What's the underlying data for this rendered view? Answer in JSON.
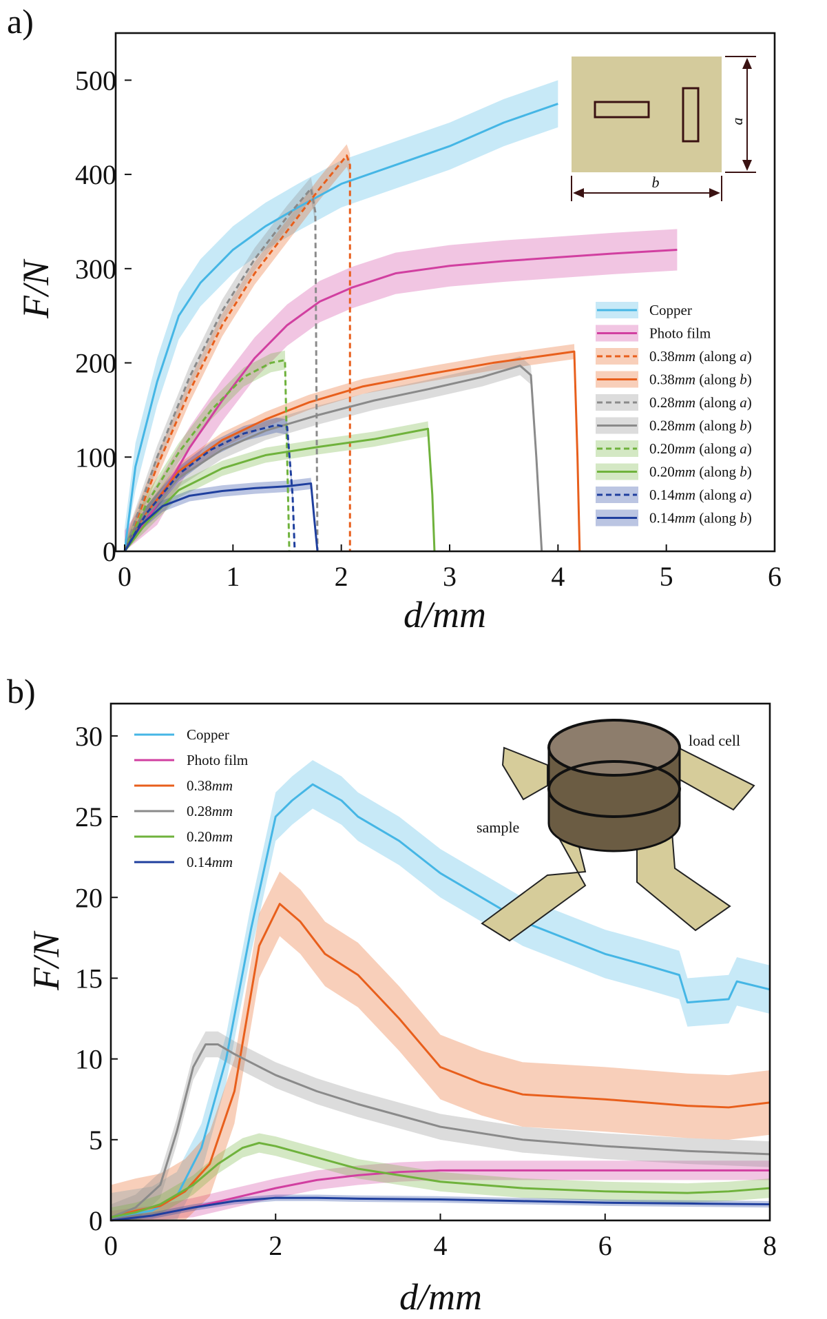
{
  "chart_data": [
    {
      "panel_label": "a)",
      "type": "line",
      "xlabel": "d/mm",
      "ylabel": "F/N",
      "xlim": [
        0,
        6
      ],
      "ylim": [
        0,
        550
      ],
      "xticks": [
        "0",
        "1",
        "2",
        "3",
        "4",
        "5",
        "6"
      ],
      "yticks": [
        "0",
        "100",
        "200",
        "300",
        "400",
        "500"
      ],
      "legend_position": "center-right",
      "inset": {
        "description": "rectangular sample with two slots",
        "dim_a": "a",
        "dim_b": "b"
      },
      "series": [
        {
          "name": "Copper",
          "color": "#45b6e5",
          "dash": "solid",
          "x": [
            0,
            0.1,
            0.3,
            0.5,
            0.7,
            1.0,
            1.3,
            1.6,
            2.0,
            2.5,
            3.0,
            3.5,
            4.0
          ],
          "y": [
            0,
            90,
            180,
            250,
            285,
            320,
            345,
            365,
            390,
            410,
            430,
            455,
            475
          ],
          "band": 25
        },
        {
          "name": "Photo film",
          "color": "#d13fa0",
          "dash": "solid",
          "x": [
            0,
            0.3,
            0.6,
            0.9,
            1.2,
            1.5,
            1.8,
            2.1,
            2.5,
            3.0,
            3.5,
            4.0,
            4.5,
            5.1
          ],
          "y": [
            0,
            50,
            110,
            160,
            205,
            240,
            265,
            280,
            295,
            303,
            308,
            312,
            316,
            320
          ],
          "band": 22
        },
        {
          "name": "0.38mm (along a)",
          "color": "#e85f1c",
          "dash": "dashed",
          "x": [
            0,
            0.3,
            0.6,
            0.9,
            1.2,
            1.5,
            1.8,
            2.05,
            2.08,
            2.08
          ],
          "y": [
            0,
            90,
            170,
            240,
            295,
            340,
            385,
            420,
            410,
            0
          ],
          "band": 12
        },
        {
          "name": "0.38mm (along b)",
          "color": "#e85f1c",
          "dash": "solid",
          "x": [
            0,
            0.2,
            0.5,
            0.9,
            1.3,
            1.7,
            2.2,
            2.8,
            3.4,
            3.9,
            4.15,
            4.18,
            4.2
          ],
          "y": [
            0,
            40,
            85,
            118,
            140,
            158,
            175,
            188,
            200,
            208,
            212,
            100,
            0
          ],
          "band": 8
        },
        {
          "name": "0.28mm (along a)",
          "color": "#8a8a8a",
          "dash": "dashed",
          "x": [
            0,
            0.3,
            0.6,
            0.9,
            1.2,
            1.5,
            1.72,
            1.76,
            1.78
          ],
          "y": [
            0,
            100,
            185,
            255,
            310,
            355,
            385,
            360,
            0
          ],
          "band": 12
        },
        {
          "name": "0.28mm (along b)",
          "color": "#8a8a8a",
          "dash": "solid",
          "x": [
            0,
            0.2,
            0.5,
            0.9,
            1.3,
            1.8,
            2.3,
            2.8,
            3.3,
            3.65,
            3.75,
            3.8,
            3.85
          ],
          "y": [
            0,
            38,
            78,
            108,
            128,
            145,
            160,
            172,
            185,
            197,
            187,
            100,
            0
          ],
          "band": 10
        },
        {
          "name": "0.20mm (along a)",
          "color": "#6fb23c",
          "dash": "dashed",
          "x": [
            0,
            0.2,
            0.5,
            0.8,
            1.1,
            1.35,
            1.48,
            1.5,
            1.52
          ],
          "y": [
            0,
            50,
            105,
            150,
            185,
            200,
            203,
            100,
            0
          ],
          "band": 10
        },
        {
          "name": "0.20mm (along b)",
          "color": "#6fb23c",
          "dash": "solid",
          "x": [
            0,
            0.2,
            0.5,
            0.9,
            1.3,
            1.8,
            2.3,
            2.8,
            2.84,
            2.86
          ],
          "y": [
            0,
            30,
            65,
            88,
            102,
            111,
            119,
            130,
            60,
            0
          ],
          "band": 8
        },
        {
          "name": "0.14mm (along a)",
          "color": "#1f3f9e",
          "dash": "dashed",
          "x": [
            0,
            0.2,
            0.5,
            0.8,
            1.1,
            1.4,
            1.5,
            1.55,
            1.57
          ],
          "y": [
            0,
            40,
            82,
            108,
            125,
            134,
            132,
            60,
            0
          ],
          "band": 8
        },
        {
          "name": "0.14mm (along b)",
          "color": "#1f3f9e",
          "dash": "solid",
          "x": [
            0,
            0.15,
            0.35,
            0.6,
            0.9,
            1.2,
            1.5,
            1.72,
            1.75,
            1.78
          ],
          "y": [
            0,
            28,
            48,
            59,
            64,
            67,
            69,
            72,
            35,
            0
          ],
          "band": 6
        }
      ]
    },
    {
      "panel_label": "b)",
      "type": "line",
      "xlabel": "d/mm",
      "ylabel": "F/N",
      "xlim": [
        0,
        8
      ],
      "ylim": [
        0,
        32
      ],
      "xticks": [
        "0",
        "2",
        "4",
        "6",
        "8"
      ],
      "yticks": [
        "0",
        "5",
        "10",
        "15",
        "20",
        "25",
        "30"
      ],
      "legend_position": "top-left",
      "inset": {
        "description": "load cell on four-arm sample",
        "label_load_cell": "load cell",
        "label_sample": "sample"
      },
      "series": [
        {
          "name": "Copper",
          "color": "#45b6e5",
          "x": [
            0,
            0.5,
            0.8,
            1.1,
            1.4,
            1.7,
            2.0,
            2.2,
            2.45,
            2.8,
            3.0,
            3.5,
            4.0,
            5.0,
            6.0,
            6.5,
            6.9,
            7.0,
            7.5,
            7.6,
            8.0
          ],
          "y": [
            0.2,
            0.6,
            1.5,
            4.5,
            10.0,
            18.0,
            25.0,
            26.0,
            27.0,
            26.0,
            25.0,
            23.5,
            21.5,
            18.5,
            16.5,
            15.8,
            15.2,
            13.5,
            13.7,
            14.8,
            14.3
          ],
          "band": 1.5
        },
        {
          "name": "Photo film",
          "color": "#d13fa0",
          "x": [
            0,
            0.5,
            1.0,
            1.5,
            2.0,
            2.5,
            3.0,
            3.5,
            4.0,
            5.0,
            6.0,
            7.0,
            8.0
          ],
          "y": [
            0,
            0.3,
            0.8,
            1.4,
            2.0,
            2.5,
            2.8,
            3.0,
            3.1,
            3.1,
            3.1,
            3.1,
            3.1
          ],
          "band": 0.6
        },
        {
          "name": "0.38mm",
          "color": "#e85f1c",
          "x": [
            0,
            0.3,
            0.6,
            0.9,
            1.2,
            1.5,
            1.8,
            2.05,
            2.3,
            2.6,
            3.0,
            3.5,
            4.0,
            4.5,
            5.0,
            6.0,
            7.0,
            7.5,
            8.0
          ],
          "y": [
            0.2,
            0.6,
            0.9,
            1.8,
            3.5,
            8.0,
            17.0,
            19.6,
            18.5,
            16.5,
            15.2,
            12.5,
            9.5,
            8.5,
            7.8,
            7.5,
            7.1,
            7.0,
            7.3
          ],
          "band": 2.0
        },
        {
          "name": "0.28mm",
          "color": "#8a8a8a",
          "x": [
            0,
            0.3,
            0.6,
            0.8,
            1.0,
            1.15,
            1.3,
            1.5,
            2.0,
            2.5,
            3.0,
            4.0,
            5.0,
            6.0,
            7.0,
            8.0
          ],
          "y": [
            0.2,
            0.8,
            2.2,
            5.5,
            9.5,
            10.9,
            10.9,
            10.3,
            9.0,
            8.0,
            7.2,
            5.8,
            5.0,
            4.6,
            4.3,
            4.1
          ],
          "band": 0.8
        },
        {
          "name": "0.20mm",
          "color": "#6fb23c",
          "x": [
            0,
            0.3,
            0.6,
            1.0,
            1.3,
            1.6,
            1.8,
            2.0,
            2.5,
            3.0,
            4.0,
            5.0,
            6.0,
            7.0,
            7.5,
            8.0
          ],
          "y": [
            0.2,
            0.5,
            1.0,
            2.2,
            3.5,
            4.5,
            4.8,
            4.6,
            3.9,
            3.2,
            2.4,
            2.0,
            1.8,
            1.7,
            1.8,
            2.0
          ],
          "band": 0.6
        },
        {
          "name": "0.14mm",
          "color": "#1f3f9e",
          "x": [
            0,
            0.5,
            1.0,
            1.5,
            2.0,
            2.5,
            3.0,
            4.0,
            5.0,
            6.0,
            7.0,
            8.0
          ],
          "y": [
            0,
            0.3,
            0.8,
            1.2,
            1.4,
            1.4,
            1.35,
            1.3,
            1.2,
            1.1,
            1.05,
            1.0
          ],
          "band": 0.2
        }
      ]
    }
  ]
}
